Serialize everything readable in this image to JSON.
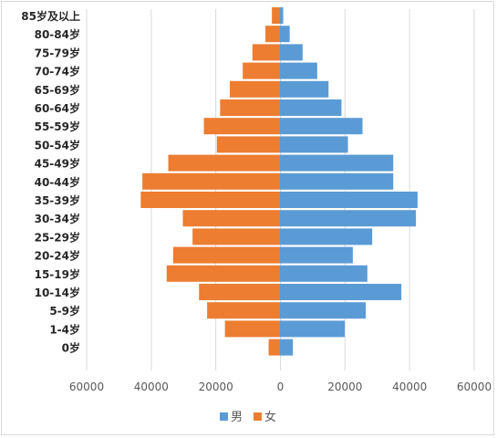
{
  "chart_data": {
    "type": "bar",
    "orientation": "horizontal",
    "layout": "population-pyramid",
    "categories": [
      "0岁",
      "1-4岁",
      "5-9岁",
      "10-14岁",
      "15-19岁",
      "20-24岁",
      "25-29岁",
      "30-34岁",
      "35-39岁",
      "40-44岁",
      "45-49岁",
      "50-54岁",
      "55-59岁",
      "60-64岁",
      "65-69岁",
      "70-74岁",
      "75-79岁",
      "80-84岁",
      "85岁及以上"
    ],
    "series": [
      {
        "name": "男",
        "color": "#5b9bd5",
        "values": [
          4000,
          20000,
          26500,
          37500,
          27000,
          22500,
          28500,
          42000,
          42500,
          35000,
          35000,
          21000,
          25500,
          19000,
          15000,
          11500,
          7000,
          3000,
          1000
        ]
      },
      {
        "name": "女",
        "color": "#ed7d31",
        "values": [
          3500,
          17000,
          22500,
          25000,
          35000,
          33000,
          27000,
          30000,
          43000,
          42500,
          34500,
          19500,
          23500,
          18500,
          15500,
          11500,
          8500,
          4500,
          2500
        ]
      }
    ],
    "x_ticks": [
      "60000",
      "40000",
      "20000",
      "0",
      "20000",
      "40000",
      "60000"
    ],
    "xlim": [
      -60000,
      60000
    ],
    "grid": "vertical",
    "legend_position": "bottom"
  }
}
